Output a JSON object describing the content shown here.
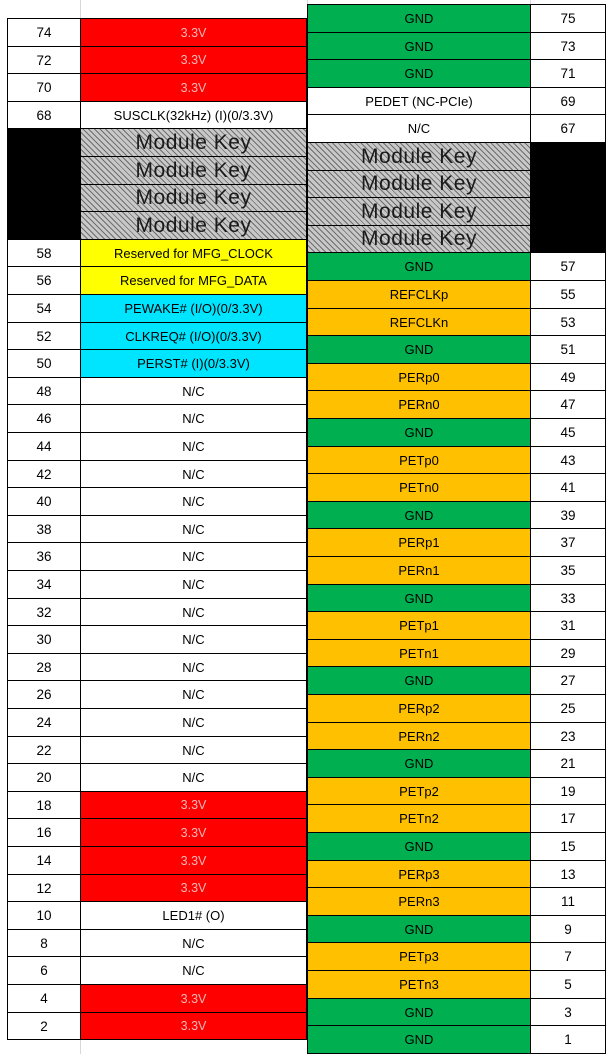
{
  "colors": {
    "red": "#ff0000",
    "green": "#00b050",
    "orange": "#ffc000",
    "yellow": "#ffff00",
    "cyan": "#00e5ff",
    "white": "#ffffff",
    "black": "#000000",
    "hatch_gray": "#bfbfbf"
  },
  "left_pins": [
    {
      "pin": "74",
      "signal": "3.3V",
      "color": "red"
    },
    {
      "pin": "72",
      "signal": "3.3V",
      "color": "red"
    },
    {
      "pin": "70",
      "signal": "3.3V",
      "color": "red"
    },
    {
      "pin": "68",
      "signal": "SUSCLK(32kHz) (I)(0/3.3V)",
      "color": "white"
    },
    {
      "pin": "",
      "signal": "Module Key",
      "color": "key"
    },
    {
      "pin": "",
      "signal": "Module Key",
      "color": "key"
    },
    {
      "pin": "",
      "signal": "Module Key",
      "color": "key"
    },
    {
      "pin": "",
      "signal": "Module Key",
      "color": "key"
    },
    {
      "pin": "58",
      "signal": "Reserved for MFG_CLOCK",
      "color": "yellow"
    },
    {
      "pin": "56",
      "signal": "Reserved for MFG_DATA",
      "color": "yellow"
    },
    {
      "pin": "54",
      "signal": "PEWAKE# (I/O)(0/3.3V)",
      "color": "cyan"
    },
    {
      "pin": "52",
      "signal": "CLKREQ# (I/O)(0/3.3V)",
      "color": "cyan"
    },
    {
      "pin": "50",
      "signal": "PERST# (I)(0/3.3V)",
      "color": "cyan"
    },
    {
      "pin": "48",
      "signal": "N/C",
      "color": "white"
    },
    {
      "pin": "46",
      "signal": "N/C",
      "color": "white"
    },
    {
      "pin": "44",
      "signal": "N/C",
      "color": "white"
    },
    {
      "pin": "42",
      "signal": "N/C",
      "color": "white"
    },
    {
      "pin": "40",
      "signal": "N/C",
      "color": "white"
    },
    {
      "pin": "38",
      "signal": "N/C",
      "color": "white"
    },
    {
      "pin": "36",
      "signal": "N/C",
      "color": "white"
    },
    {
      "pin": "34",
      "signal": "N/C",
      "color": "white"
    },
    {
      "pin": "32",
      "signal": "N/C",
      "color": "white"
    },
    {
      "pin": "30",
      "signal": "N/C",
      "color": "white"
    },
    {
      "pin": "28",
      "signal": "N/C",
      "color": "white"
    },
    {
      "pin": "26",
      "signal": "N/C",
      "color": "white"
    },
    {
      "pin": "24",
      "signal": "N/C",
      "color": "white"
    },
    {
      "pin": "22",
      "signal": "N/C",
      "color": "white"
    },
    {
      "pin": "20",
      "signal": "N/C",
      "color": "white"
    },
    {
      "pin": "18",
      "signal": "3.3V",
      "color": "red"
    },
    {
      "pin": "16",
      "signal": "3.3V",
      "color": "red"
    },
    {
      "pin": "14",
      "signal": "3.3V",
      "color": "red"
    },
    {
      "pin": "12",
      "signal": "3.3V",
      "color": "red"
    },
    {
      "pin": "10",
      "signal": "LED1# (O)",
      "color": "white"
    },
    {
      "pin": "8",
      "signal": "N/C",
      "color": "white"
    },
    {
      "pin": "6",
      "signal": "N/C",
      "color": "white"
    },
    {
      "pin": "4",
      "signal": "3.3V",
      "color": "red"
    },
    {
      "pin": "2",
      "signal": "3.3V",
      "color": "red"
    }
  ],
  "right_pins": [
    {
      "pin": "75",
      "signal": "GND",
      "color": "green"
    },
    {
      "pin": "73",
      "signal": "GND",
      "color": "green"
    },
    {
      "pin": "71",
      "signal": "GND",
      "color": "green"
    },
    {
      "pin": "69",
      "signal": "PEDET (NC-PCIe)",
      "color": "white"
    },
    {
      "pin": "67",
      "signal": "N/C",
      "color": "white"
    },
    {
      "pin": "",
      "signal": "Module Key",
      "color": "key"
    },
    {
      "pin": "",
      "signal": "Module Key",
      "color": "key"
    },
    {
      "pin": "",
      "signal": "Module Key",
      "color": "key"
    },
    {
      "pin": "",
      "signal": "Module Key",
      "color": "key"
    },
    {
      "pin": "57",
      "signal": "GND",
      "color": "green"
    },
    {
      "pin": "55",
      "signal": "REFCLKp",
      "color": "orange"
    },
    {
      "pin": "53",
      "signal": "REFCLKn",
      "color": "orange"
    },
    {
      "pin": "51",
      "signal": "GND",
      "color": "green"
    },
    {
      "pin": "49",
      "signal": "PERp0",
      "color": "orange"
    },
    {
      "pin": "47",
      "signal": "PERn0",
      "color": "orange"
    },
    {
      "pin": "45",
      "signal": "GND",
      "color": "green"
    },
    {
      "pin": "43",
      "signal": "PETp0",
      "color": "orange"
    },
    {
      "pin": "41",
      "signal": "PETn0",
      "color": "orange"
    },
    {
      "pin": "39",
      "signal": "GND",
      "color": "green"
    },
    {
      "pin": "37",
      "signal": "PERp1",
      "color": "orange"
    },
    {
      "pin": "35",
      "signal": "PERn1",
      "color": "orange"
    },
    {
      "pin": "33",
      "signal": "GND",
      "color": "green"
    },
    {
      "pin": "31",
      "signal": "PETp1",
      "color": "orange"
    },
    {
      "pin": "29",
      "signal": "PETn1",
      "color": "orange"
    },
    {
      "pin": "27",
      "signal": "GND",
      "color": "green"
    },
    {
      "pin": "25",
      "signal": "PERp2",
      "color": "orange"
    },
    {
      "pin": "23",
      "signal": "PERn2",
      "color": "orange"
    },
    {
      "pin": "21",
      "signal": "GND",
      "color": "green"
    },
    {
      "pin": "19",
      "signal": "PETp2",
      "color": "orange"
    },
    {
      "pin": "17",
      "signal": "PETn2",
      "color": "orange"
    },
    {
      "pin": "15",
      "signal": "GND",
      "color": "green"
    },
    {
      "pin": "13",
      "signal": "PERp3",
      "color": "orange"
    },
    {
      "pin": "11",
      "signal": "PERn3",
      "color": "orange"
    },
    {
      "pin": "9",
      "signal": "GND",
      "color": "green"
    },
    {
      "pin": "7",
      "signal": "PETp3",
      "color": "orange"
    },
    {
      "pin": "5",
      "signal": "PETn3",
      "color": "orange"
    },
    {
      "pin": "3",
      "signal": "GND",
      "color": "green"
    },
    {
      "pin": "1",
      "signal": "GND",
      "color": "green"
    }
  ]
}
